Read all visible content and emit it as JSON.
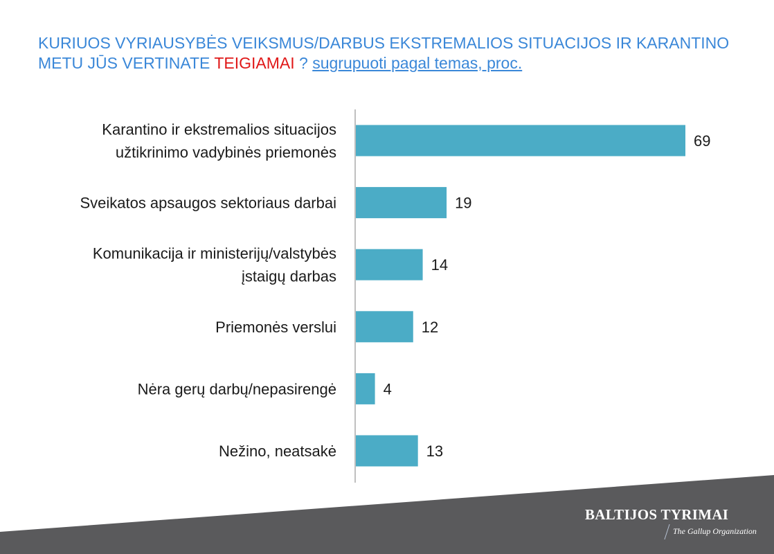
{
  "header": {
    "title_part1": "KURIUOS VYRIAUSYBĖS VEIKSMUS/DARBUS EKSTREMALIOS SITUACIJOS IR KARANTINO METU JŪS VERTINATE",
    "title_highlight": "TEIGIAMAI",
    "title_q": "?",
    "title_link": "sugrupuoti pagal temas, proc."
  },
  "brand": {
    "name": "BALTIJOS TYRIMAI",
    "tagline": "The Gallup Organization"
  },
  "colors": {
    "bar": "#4bacc6",
    "title": "#3a87d8",
    "highlight": "#e01818",
    "footer_band": "#5a5a5c"
  },
  "chart_data": {
    "type": "bar",
    "orientation": "horizontal",
    "categories": [
      [
        "Karantino ir ekstremalios situacijos",
        "užtikrinimo vadybinės priemonės"
      ],
      [
        "Sveikatos apsaugos sektoriaus darbai"
      ],
      [
        "Komunikacija ir ministerijų/valstybės",
        "įstaigų darbas"
      ],
      [
        "Priemonės verslui"
      ],
      [
        "Nėra gerų darbų/nepasirengė"
      ],
      [
        "Nežino, neatsakė"
      ]
    ],
    "values": [
      69,
      19,
      14,
      12,
      4,
      13
    ],
    "xlim": [
      0,
      69
    ],
    "grid": false
  }
}
